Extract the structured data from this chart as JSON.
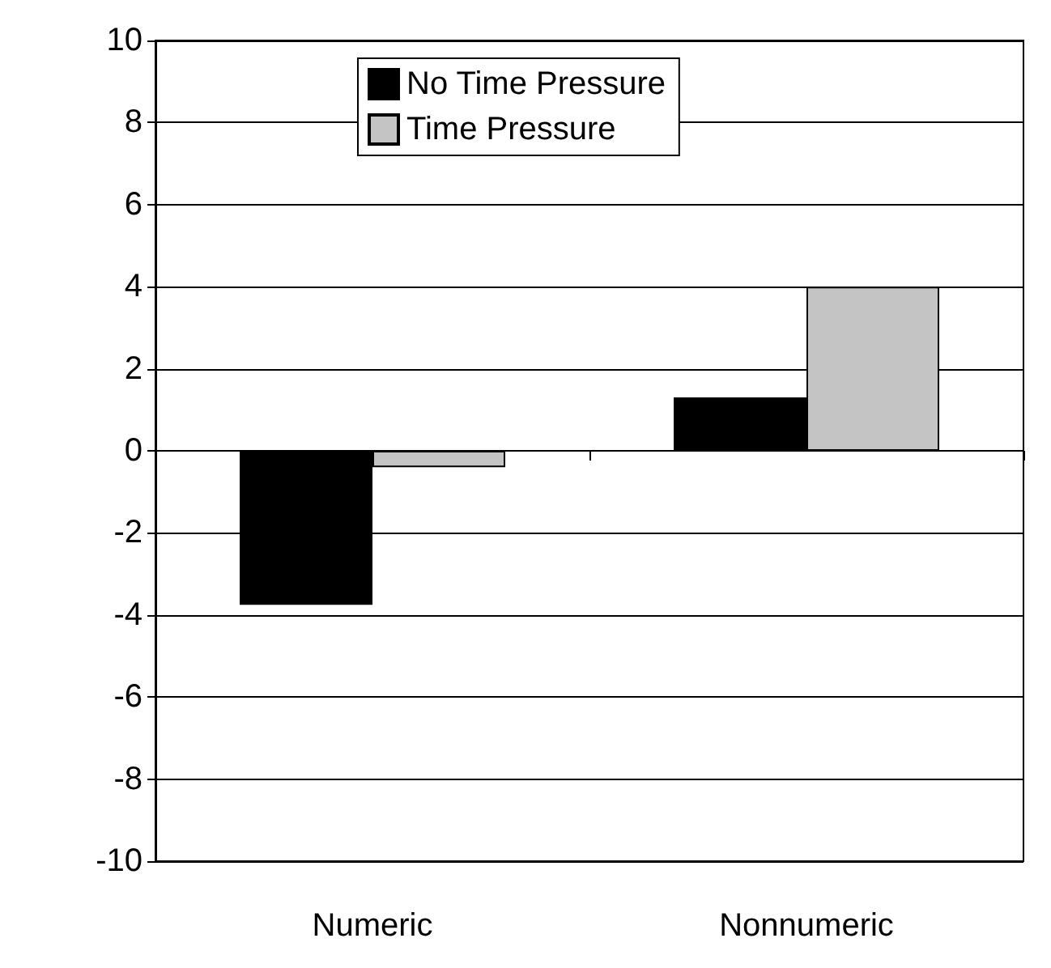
{
  "chart_data": {
    "type": "bar",
    "categories": [
      "Numeric",
      "Nonnumeric"
    ],
    "series": [
      {
        "name": "No Time Pressure",
        "color": "#000000",
        "values": [
          -3.75,
          1.3
        ]
      },
      {
        "name": "Time Pressure",
        "color": "#c4c4c4",
        "values": [
          -0.4,
          4.0
        ]
      }
    ],
    "ylim": [
      -10,
      10
    ],
    "yticks": [
      -10,
      -8,
      -6,
      -4,
      -2,
      0,
      2,
      4,
      6,
      8,
      10
    ],
    "grid": "y",
    "legend": "top"
  }
}
